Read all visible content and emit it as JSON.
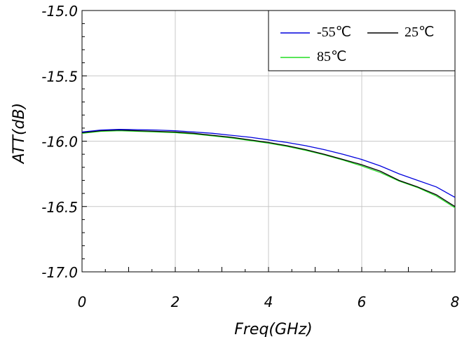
{
  "chart_data": {
    "type": "line",
    "xlabel": "Freq(GHz)",
    "ylabel": "ATT(dB)",
    "xlim": [
      0,
      8
    ],
    "ylim": [
      -17.0,
      -15.0
    ],
    "x_ticks": [
      "0",
      "2",
      "4",
      "6",
      "8"
    ],
    "y_ticks": [
      "-15.0",
      "-15.5",
      "-16.0",
      "-16.5",
      "-17.0"
    ],
    "grid": true,
    "legend_position": "top-right",
    "x": [
      0,
      0.4,
      0.8,
      1.2,
      1.6,
      2.0,
      2.4,
      2.8,
      3.2,
      3.6,
      4.0,
      4.4,
      4.8,
      5.2,
      5.6,
      6.0,
      6.4,
      6.8,
      7.2,
      7.6,
      8.0
    ],
    "series": [
      {
        "name": "-55℃",
        "color": "#0000dd",
        "values": [
          -15.93,
          -15.915,
          -15.91,
          -15.912,
          -15.915,
          -15.92,
          -15.93,
          -15.94,
          -15.955,
          -15.97,
          -15.99,
          -16.01,
          -16.035,
          -16.065,
          -16.1,
          -16.14,
          -16.19,
          -16.25,
          -16.3,
          -16.35,
          -16.43
        ]
      },
      {
        "name": "25℃",
        "color": "#000000",
        "values": [
          -15.935,
          -15.92,
          -15.915,
          -15.92,
          -15.925,
          -15.93,
          -15.94,
          -15.955,
          -15.97,
          -15.99,
          -16.01,
          -16.035,
          -16.065,
          -16.1,
          -16.14,
          -16.18,
          -16.23,
          -16.3,
          -16.35,
          -16.41,
          -16.5
        ]
      },
      {
        "name": "85℃",
        "color": "#22dd22",
        "values": [
          -15.94,
          -15.925,
          -15.92,
          -15.925,
          -15.93,
          -15.935,
          -15.945,
          -15.96,
          -15.975,
          -15.995,
          -16.015,
          -16.04,
          -16.07,
          -16.105,
          -16.145,
          -16.19,
          -16.24,
          -16.305,
          -16.355,
          -16.42,
          -16.51
        ]
      }
    ]
  }
}
